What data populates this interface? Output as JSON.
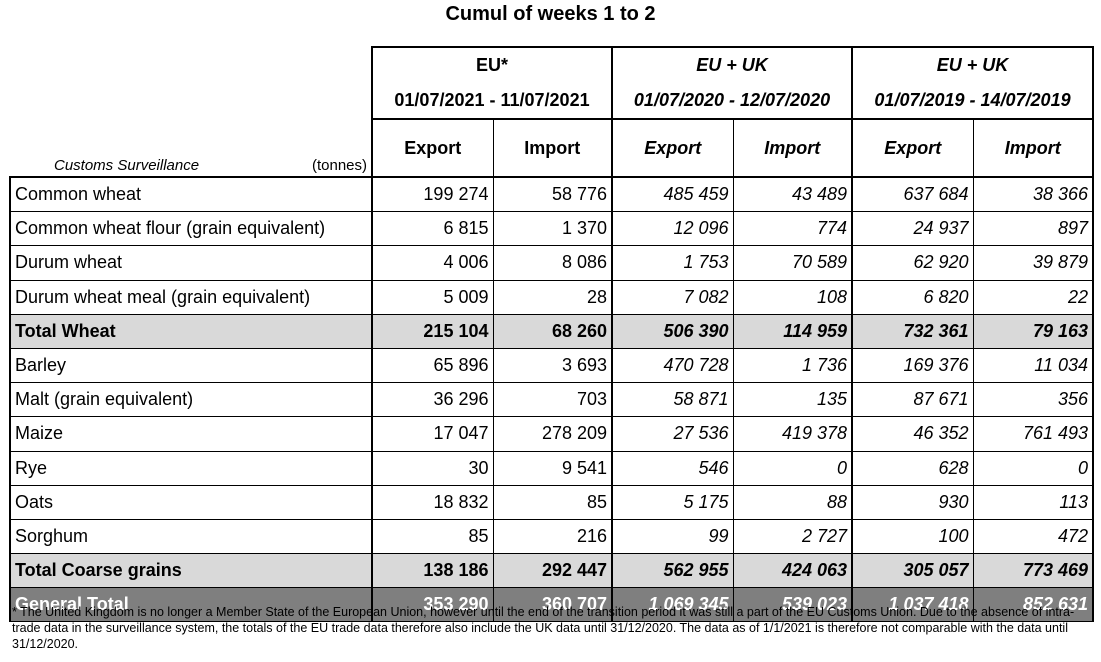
{
  "title": "Cumul of weeks 1 to 2",
  "corner": {
    "label": "Customs Surveillance",
    "unit": "(tonnes)"
  },
  "groups": [
    {
      "name": "EU*",
      "period": "01/07/2021 - 11/07/2021",
      "italic": false
    },
    {
      "name": "EU + UK",
      "period": "01/07/2020 - 12/07/2020",
      "italic": true
    },
    {
      "name": "EU + UK",
      "period": "01/07/2019 - 14/07/2019",
      "italic": true
    }
  ],
  "subheaders": [
    "Export",
    "Import",
    "Export",
    "Import",
    "Export",
    "Import"
  ],
  "rows": [
    {
      "label": "Common wheat",
      "values": [
        "199 274",
        "58 776",
        "485 459",
        "43 489",
        "637 684",
        "38 366"
      ]
    },
    {
      "label": "Common wheat flour (grain equivalent)",
      "values": [
        "6 815",
        "1 370",
        "12 096",
        "774",
        "24 937",
        "897"
      ]
    },
    {
      "label": "Durum wheat",
      "values": [
        "4 006",
        "8 086",
        "1 753",
        "70 589",
        "62 920",
        "39 879"
      ]
    },
    {
      "label": "Durum wheat meal (grain equivalent)",
      "values": [
        "5 009",
        "28",
        "7 082",
        "108",
        "6 820",
        "22"
      ]
    },
    {
      "label": "Total Wheat",
      "values": [
        "215 104",
        "68 260",
        "506 390",
        "114 959",
        "732 361",
        "79 163"
      ]
    },
    {
      "label": "Barley",
      "values": [
        "65 896",
        "3 693",
        "470 728",
        "1 736",
        "169 376",
        "11 034"
      ]
    },
    {
      "label": "Malt (grain equivalent)",
      "values": [
        "36 296",
        "703",
        "58 871",
        "135",
        "87 671",
        "356"
      ]
    },
    {
      "label": "Maize",
      "values": [
        "17 047",
        "278 209",
        "27 536",
        "419 378",
        "46 352",
        "761 493"
      ]
    },
    {
      "label": "Rye",
      "values": [
        "30",
        "9 541",
        "546",
        "0",
        "628",
        "0"
      ]
    },
    {
      "label": "Oats",
      "values": [
        "18 832",
        "85",
        "5 175",
        "88",
        "930",
        "113"
      ]
    },
    {
      "label": "Sorghum",
      "values": [
        "85",
        "216",
        "99",
        "2 727",
        "100",
        "472"
      ]
    },
    {
      "label": "Total Coarse grains",
      "values": [
        "138 186",
        "292 447",
        "562 955",
        "424 063",
        "305 057",
        "773 469"
      ]
    },
    {
      "label": "General Total",
      "values": [
        "353 290",
        "360 707",
        "1 069 345",
        "539 023",
        "1 037 418",
        "852 631"
      ]
    }
  ],
  "colors": {
    "total_row_bg": "#d9d9d9",
    "general_total_bg": "#7f7f7f",
    "general_total_text": "#ffffff"
  },
  "footnote": "* The United Kingdom is no longer a Member State of the European Union, however until the end of the transition period it was still a part of the EU Customs Union. Due to the absence of intra-trade data in the surveillance system, the totals of the EU trade data  therefore also include the UK data until 31/12/2020. The data as of 1/1/2021 is therefore not comparable with the data until 31/12/2020."
}
